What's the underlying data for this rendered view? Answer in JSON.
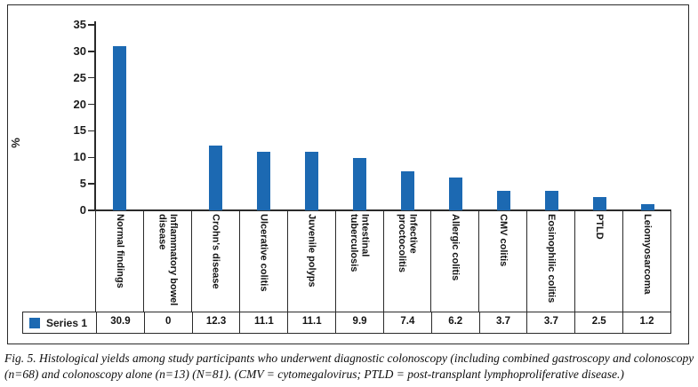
{
  "chart_data": {
    "type": "bar",
    "title": "",
    "xlabel": "",
    "ylabel": "%",
    "ylim": [
      0,
      35
    ],
    "yticks": [
      0,
      5,
      10,
      15,
      20,
      25,
      30,
      35
    ],
    "grid": false,
    "legend_position": "bottom-data-table",
    "categories": [
      "Normal findings",
      "Inflammatory bowel disease",
      "Crohn's disease",
      "Ulcerative colitis",
      "Juvenile polyps",
      "Intestinal tuberculosis",
      "Infective proctocolitis",
      "Allergic colitis",
      "CMV colitis",
      "Eosinophilic colitis",
      "PTLD",
      "Leiomyosarcoma"
    ],
    "series": [
      {
        "name": "Series 1",
        "values": [
          30.9,
          0,
          12.3,
          11.1,
          11.1,
          9.9,
          7.4,
          6.2,
          3.7,
          3.7,
          2.5,
          1.2
        ]
      }
    ],
    "value_labels": [
      "30.9",
      "0",
      "12.3",
      "11.1",
      "11.1",
      "9.9",
      "7.4",
      "6.2",
      "3.7",
      "3.7",
      "2.5",
      "1.2"
    ]
  },
  "colors": {
    "bar": "#1c69b2",
    "axis": "#2a2a2a",
    "text": "#1c1c1c"
  },
  "caption": {
    "text": "Fig. 5. Histological yields among study participants who underwent diagnostic colonoscopy (including combined gastroscopy and colonoscopy (n=68) and colonoscopy alone (n=13) (N=81). (CMV = cytomegalovirus; PTLD = post-transplant lymphoproliferative disease.)"
  }
}
